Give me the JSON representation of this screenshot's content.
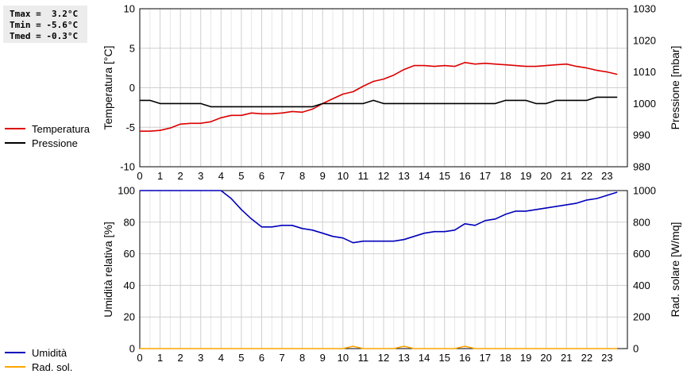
{
  "stats": {
    "tmax": "Tmax =  3.2°C",
    "tmin": "Tmin = -5.6°C",
    "tmed": "Tmed = -0.3°C"
  },
  "legend_top": [
    {
      "label": "Temperatura",
      "color": "#dd0000"
    },
    {
      "label": "Pressione",
      "color": "#000000"
    }
  ],
  "legend_bottom": [
    {
      "label": "Umidità",
      "color": "#0000bb"
    },
    {
      "label": "Rad. sol.",
      "color": "#ffa500"
    }
  ],
  "chart_data": [
    {
      "type": "line",
      "xlim": [
        0,
        24
      ],
      "xticks": [
        "0",
        "1",
        "2",
        "3",
        "4",
        "5",
        "6",
        "7",
        "8",
        "9",
        "10",
        "11",
        "12",
        "13",
        "14",
        "15",
        "16",
        "17",
        "18",
        "19",
        "20",
        "21",
        "22",
        "23"
      ],
      "ylabel": "Temperatura [°C]",
      "ylim": [
        -10,
        10
      ],
      "yticks": [
        "10",
        "5",
        "0",
        "-5",
        "-10"
      ],
      "y2label": "Pressione [mbar]",
      "y2lim": [
        980,
        1030
      ],
      "y2ticks": [
        "1030",
        "1020",
        "1010",
        "1000",
        "990",
        "980"
      ],
      "grid": true,
      "series": [
        {
          "name": "Temperatura",
          "axis": "left",
          "color": "#dd0000",
          "x": [
            0,
            0.5,
            1,
            1.5,
            2,
            2.5,
            3,
            3.5,
            4,
            4.5,
            5,
            5.5,
            6,
            6.5,
            7,
            7.5,
            8,
            8.5,
            9,
            9.5,
            10,
            10.5,
            11,
            11.5,
            12,
            12.5,
            13,
            13.5,
            14,
            14.5,
            15,
            15.5,
            16,
            16.5,
            17,
            17.5,
            18,
            18.5,
            19,
            19.5,
            20,
            20.5,
            21,
            21.5,
            22,
            22.5,
            23,
            23.5
          ],
          "y": [
            -5.5,
            -5.5,
            -5.4,
            -5.1,
            -4.6,
            -4.5,
            -4.5,
            -4.3,
            -3.8,
            -3.5,
            -3.5,
            -3.2,
            -3.3,
            -3.3,
            -3.2,
            -3.0,
            -3.1,
            -2.7,
            -2.0,
            -1.4,
            -0.8,
            -0.5,
            0.2,
            0.8,
            1.1,
            1.6,
            2.3,
            2.8,
            2.8,
            2.7,
            2.8,
            2.7,
            3.2,
            3.0,
            3.1,
            3.0,
            2.9,
            2.8,
            2.7,
            2.7,
            2.8,
            2.9,
            3.0,
            2.7,
            2.5,
            2.2,
            2.0,
            1.7
          ]
        },
        {
          "name": "Pressione",
          "axis": "right",
          "color": "#000000",
          "x": [
            0,
            0.5,
            1,
            1.5,
            2,
            2.5,
            3,
            3.5,
            4,
            4.5,
            5,
            5.5,
            6,
            6.5,
            7,
            7.5,
            8,
            8.5,
            9,
            9.5,
            10,
            10.5,
            11,
            11.5,
            12,
            12.5,
            13,
            13.5,
            14,
            14.5,
            15,
            15.5,
            16,
            16.5,
            17,
            17.5,
            18,
            18.5,
            19,
            19.5,
            20,
            20.5,
            21,
            21.5,
            22,
            22.5,
            23,
            23.5
          ],
          "y": [
            1001,
            1001,
            1000,
            1000,
            1000,
            1000,
            1000,
            999,
            999,
            999,
            999,
            999,
            999,
            999,
            999,
            999,
            999,
            999,
            1000,
            1000,
            1000,
            1000,
            1000,
            1001,
            1000,
            1000,
            1000,
            1000,
            1000,
            1000,
            1000,
            1000,
            1000,
            1000,
            1000,
            1000,
            1001,
            1001,
            1001,
            1000,
            1000,
            1001,
            1001,
            1001,
            1001,
            1002,
            1002,
            1002
          ]
        }
      ]
    },
    {
      "type": "line",
      "xlim": [
        0,
        24
      ],
      "xticks": [
        "0",
        "1",
        "2",
        "3",
        "4",
        "5",
        "6",
        "7",
        "8",
        "9",
        "10",
        "11",
        "12",
        "13",
        "14",
        "15",
        "16",
        "17",
        "18",
        "19",
        "20",
        "21",
        "22",
        "23"
      ],
      "ylabel": "Umidità relativa [%]",
      "ylim": [
        0,
        100
      ],
      "yticks": [
        "100",
        "80",
        "60",
        "40",
        "20",
        "0"
      ],
      "y2label": "Rad. solare [W/mq]",
      "y2lim": [
        0,
        1000
      ],
      "y2ticks": [
        "1000",
        "800",
        "600",
        "400",
        "200",
        "0"
      ],
      "grid": true,
      "series": [
        {
          "name": "Umidità",
          "axis": "left",
          "color": "#0000bb",
          "x": [
            0,
            0.5,
            1,
            1.5,
            2,
            2.5,
            3,
            3.5,
            4,
            4.5,
            5,
            5.5,
            6,
            6.5,
            7,
            7.5,
            8,
            8.5,
            9,
            9.5,
            10,
            10.5,
            11,
            11.5,
            12,
            12.5,
            13,
            13.5,
            14,
            14.5,
            15,
            15.5,
            16,
            16.5,
            17,
            17.5,
            18,
            18.5,
            19,
            19.5,
            20,
            20.5,
            21,
            21.5,
            22,
            22.5,
            23,
            23.5
          ],
          "y": [
            100,
            100,
            100,
            100,
            100,
            100,
            100,
            100,
            100,
            95,
            88,
            82,
            77,
            77,
            78,
            78,
            76,
            75,
            73,
            71,
            70,
            67,
            68,
            68,
            68,
            68,
            69,
            71,
            73,
            74,
            74,
            75,
            79,
            78,
            81,
            82,
            85,
            87,
            87,
            88,
            89,
            90,
            91,
            92,
            94,
            95,
            97,
            99
          ]
        },
        {
          "name": "Rad. sol.",
          "axis": "right",
          "color": "#ffa500",
          "x": [
            0,
            1,
            2,
            3,
            4,
            5,
            6,
            7,
            8,
            9,
            10,
            10.5,
            11,
            12,
            12.5,
            13,
            13.5,
            14,
            15,
            15.5,
            16,
            16.5,
            17,
            18,
            19,
            20,
            21,
            22,
            23,
            23.5
          ],
          "y": [
            0,
            0,
            0,
            0,
            0,
            0,
            0,
            0,
            0,
            0,
            0,
            15,
            0,
            0,
            0,
            15,
            0,
            0,
            0,
            0,
            15,
            0,
            0,
            0,
            0,
            0,
            0,
            0,
            0,
            0
          ]
        }
      ]
    }
  ]
}
